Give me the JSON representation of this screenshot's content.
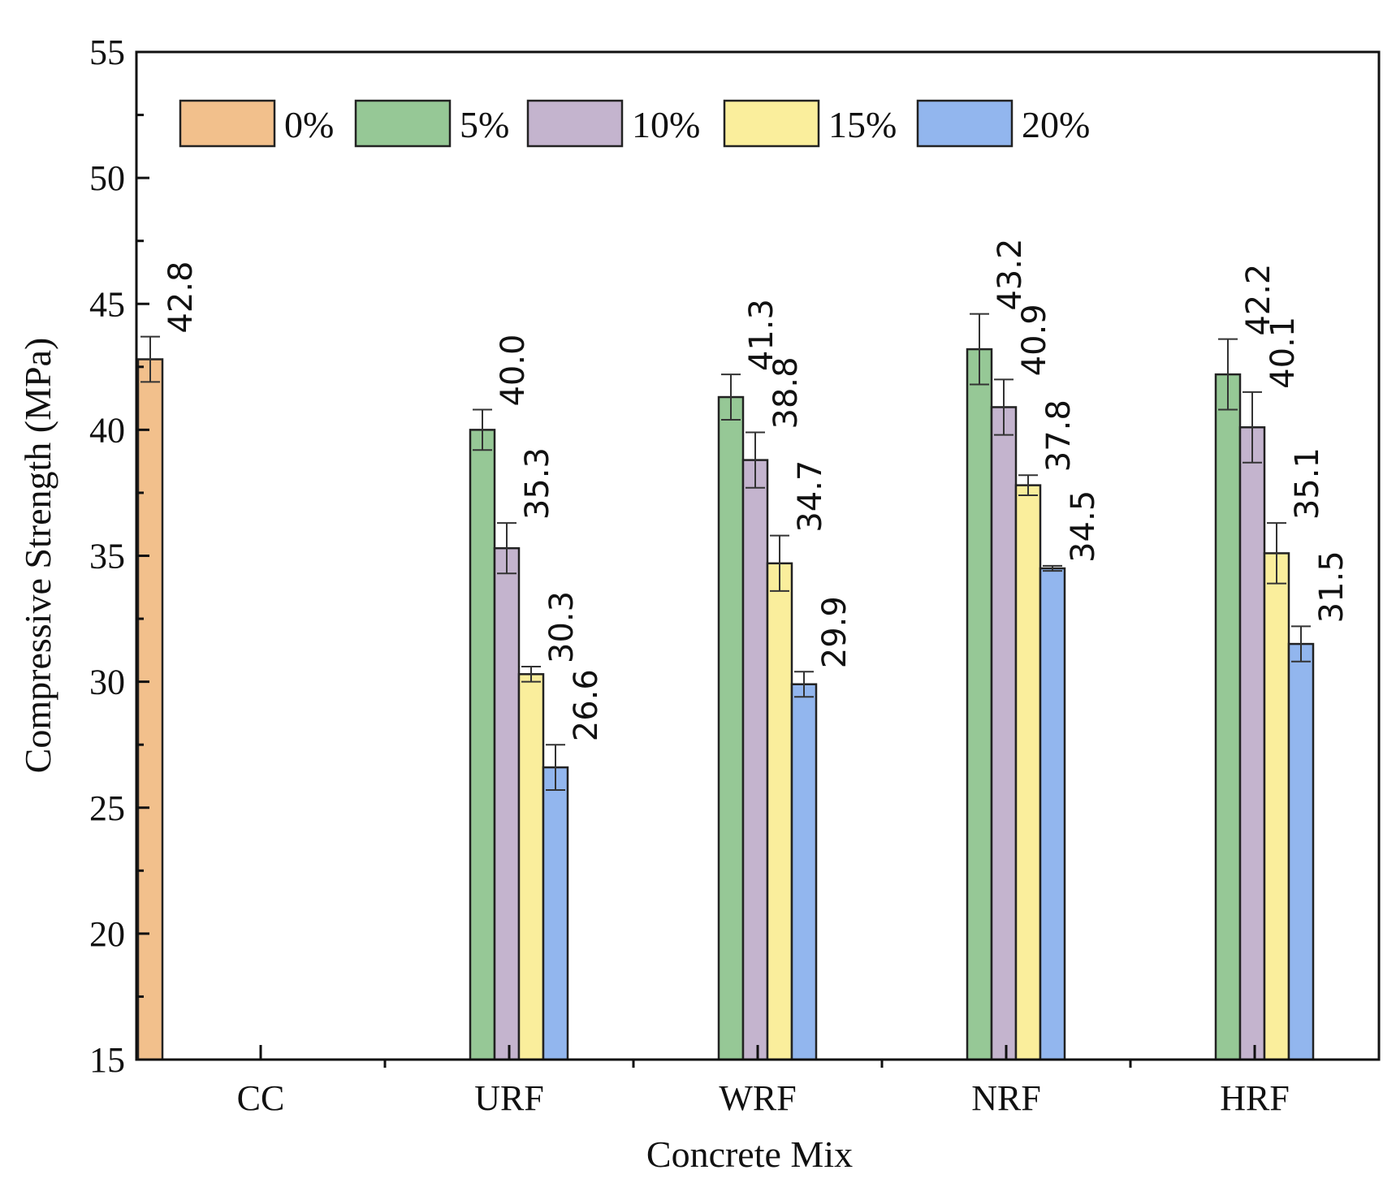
{
  "chart_data": {
    "type": "bar",
    "xlabel": "Concrete Mix",
    "ylabel": "Compressive Strength (MPa)",
    "ylim": [
      15,
      55
    ],
    "yticks": [
      "15",
      "20",
      "25",
      "30",
      "35",
      "40",
      "45",
      "50",
      "55"
    ],
    "ytick_values": [
      15,
      20,
      25,
      30,
      35,
      40,
      45,
      50,
      55
    ],
    "categories": [
      "CC",
      "URF",
      "WRF",
      "NRF",
      "HRF"
    ],
    "legend": {
      "placement": "top-left",
      "entries": [
        "0%",
        "5%",
        "10%",
        "15%",
        "20%"
      ]
    },
    "series": [
      {
        "name": "0%",
        "color": "#F2C08C",
        "values": [
          42.8,
          null,
          null,
          null,
          null
        ],
        "errors": [
          0.9,
          null,
          null,
          null,
          null
        ],
        "labels": [
          "42.8",
          null,
          null,
          null,
          null
        ]
      },
      {
        "name": "5%",
        "color": "#96C896",
        "values": [
          null,
          40.0,
          41.3,
          43.2,
          42.2
        ],
        "errors": [
          null,
          0.8,
          0.9,
          1.4,
          1.4
        ],
        "labels": [
          null,
          "40.0",
          "41.3",
          "43.2",
          "42.2"
        ]
      },
      {
        "name": "10%",
        "color": "#C4B4CE",
        "values": [
          null,
          35.3,
          38.8,
          40.9,
          40.1
        ],
        "errors": [
          null,
          1.0,
          1.1,
          1.1,
          1.4
        ],
        "labels": [
          null,
          "35.3",
          "38.8",
          "40.9",
          "40.1"
        ]
      },
      {
        "name": "15%",
        "color": "#FAEE9C",
        "values": [
          null,
          30.3,
          34.7,
          37.8,
          35.1
        ],
        "errors": [
          null,
          0.3,
          1.1,
          0.4,
          1.2
        ],
        "labels": [
          null,
          "30.3",
          "34.7",
          "37.8",
          "35.1"
        ]
      },
      {
        "name": "20%",
        "color": "#92B6EE",
        "values": [
          null,
          26.6,
          29.9,
          34.5,
          31.5
        ],
        "errors": [
          null,
          0.9,
          0.5,
          0.1,
          0.7
        ],
        "labels": [
          null,
          "26.6",
          "29.9",
          "34.5",
          "31.5"
        ]
      }
    ]
  }
}
